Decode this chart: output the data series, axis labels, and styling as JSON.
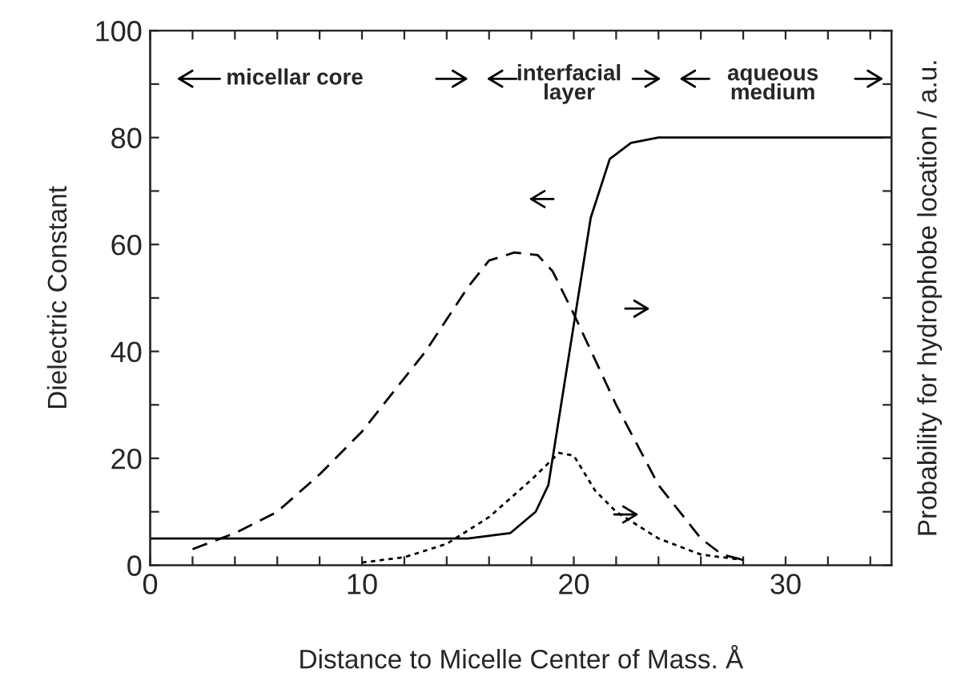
{
  "chart_data": {
    "type": "line",
    "xlabel": "Distance to Micelle Center of Mass. Å",
    "ylabel": "Dielectric Constant",
    "y2label": "Probability for hydrophobe location / a.u.",
    "xlim": [
      0,
      35
    ],
    "ylim": [
      0,
      100
    ],
    "xticks": [
      0,
      {
        "value": 2,
        "label": null
      },
      {
        "value": 4,
        "label": null
      },
      {
        "value": 6,
        "label": null
      },
      {
        "value": 8,
        "label": null
      },
      10,
      {
        "value": 12,
        "label": null
      },
      {
        "value": 14,
        "label": null
      },
      {
        "value": 16,
        "label": null
      },
      {
        "value": 18,
        "label": null
      },
      20,
      {
        "value": 22,
        "label": null
      },
      {
        "value": 24,
        "label": null
      },
      {
        "value": 26,
        "label": null
      },
      {
        "value": 28,
        "label": null
      },
      30,
      {
        "value": 32,
        "label": null
      },
      {
        "value": 34,
        "label": null
      }
    ],
    "yticks": [
      0,
      {
        "value": 10,
        "label": null
      },
      20,
      {
        "value": 30,
        "label": null
      },
      40,
      {
        "value": 50,
        "label": null
      },
      60,
      {
        "value": 70,
        "label": null
      },
      80,
      {
        "value": 90,
        "label": null
      },
      100
    ],
    "grid": false,
    "legend": false,
    "marker": "none",
    "series": [
      {
        "color": "#000000",
        "line_style": "solid",
        "x": [
          0,
          5,
          10,
          15,
          17,
          18.2,
          18.8,
          19.8,
          20.8,
          21.7,
          22.7,
          24,
          30,
          35
        ],
        "values": [
          5,
          5,
          5,
          5,
          6,
          10,
          15,
          40,
          65,
          76,
          79,
          80,
          80,
          80
        ]
      },
      {
        "color": "#000000",
        "line_style": "dashed",
        "x": [
          2,
          4,
          6,
          8,
          10,
          13,
          15,
          16,
          17.2,
          18.3,
          19,
          20,
          22,
          24,
          26,
          27,
          28
        ],
        "values": [
          3,
          6,
          10,
          17,
          25,
          40,
          52,
          57,
          58.5,
          58,
          55,
          47,
          30,
          15,
          5,
          2,
          1
        ]
      },
      {
        "color": "#000000",
        "line_style": "dotted",
        "x": [
          10,
          12,
          14,
          16,
          18,
          19.3,
          20,
          21,
          22,
          24,
          26,
          28
        ],
        "values": [
          0.5,
          1.5,
          4,
          9,
          16,
          21,
          20.5,
          14,
          10,
          5,
          2,
          1
        ]
      }
    ],
    "annotations": [
      "micellar core",
      "interfacial\nlayer",
      "aqueous\nmedium"
    ]
  }
}
